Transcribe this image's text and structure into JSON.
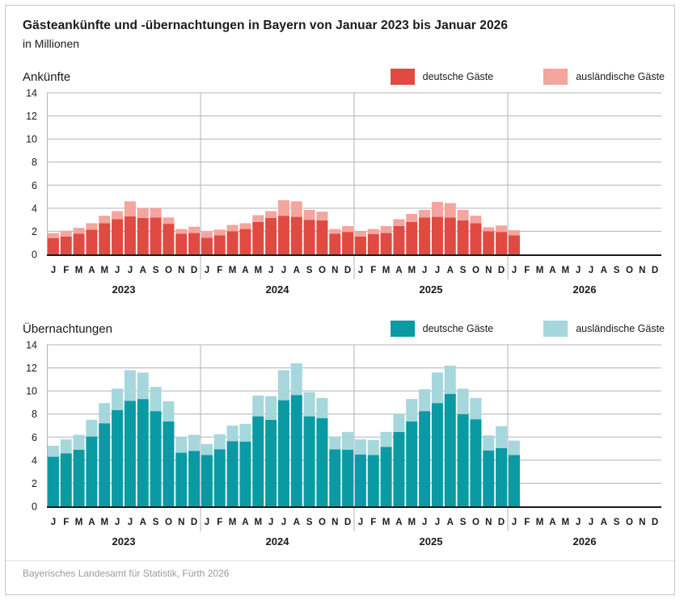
{
  "header": {
    "title": "Gästeankünfte und -übernachtungen in Bayern von Januar 2023 bis Januar 2026",
    "subtitle": "in Millionen"
  },
  "footer": {
    "source": "Bayerisches Landesamt für Statistik, Fürth 2026"
  },
  "colors": {
    "red": "#e04a42",
    "salmon": "#f4a59d",
    "teal": "#0a9aa3",
    "teal_light": "#a6d7dd",
    "grid": "#b3b3b3",
    "axis": "#1a1a1a",
    "text": "#1a1a1a"
  },
  "charts": [
    {
      "heading": "Ankünfte",
      "legend": [
        {
          "label": "deutsche Gäste"
        },
        {
          "label": "ausländische Gäste"
        }
      ]
    },
    {
      "heading": "Übernachtungen",
      "legend": [
        {
          "label": "deutsche Gäste"
        },
        {
          "label": "ausländische Gäste"
        }
      ]
    }
  ],
  "chart_data": [
    {
      "type": "bar",
      "stacked": true,
      "title": "Ankünfte",
      "years": [
        "2023",
        "2024",
        "2025",
        "2026"
      ],
      "month_letters": [
        "J",
        "F",
        "M",
        "A",
        "M",
        "J",
        "J",
        "A",
        "S",
        "O",
        "N",
        "D"
      ],
      "ylim": [
        0,
        14
      ],
      "ytick_step": 2,
      "grid": true,
      "legend_position": "top-right",
      "series": [
        {
          "name": "deutsche Gäste",
          "values": [
            1.4,
            1.55,
            1.8,
            2.15,
            2.7,
            3.05,
            3.3,
            3.15,
            3.2,
            2.65,
            1.8,
            1.85,
            1.45,
            1.65,
            2.0,
            2.2,
            2.8,
            3.15,
            3.35,
            3.25,
            3.0,
            2.95,
            1.8,
            1.95,
            1.55,
            1.75,
            1.85,
            2.45,
            2.8,
            3.2,
            3.25,
            3.2,
            2.95,
            2.7,
            2.0,
            1.95,
            1.65
          ]
        },
        {
          "name": "ausländische Gäste",
          "values": [
            0.45,
            0.5,
            0.5,
            0.55,
            0.65,
            0.7,
            1.3,
            0.85,
            0.8,
            0.55,
            0.4,
            0.55,
            0.5,
            0.5,
            0.55,
            0.5,
            0.6,
            0.6,
            1.35,
            1.35,
            0.85,
            0.75,
            0.4,
            0.5,
            0.45,
            0.45,
            0.6,
            0.6,
            0.7,
            0.65,
            1.3,
            1.25,
            0.9,
            0.65,
            0.35,
            0.55,
            0.45
          ]
        }
      ]
    },
    {
      "type": "bar",
      "stacked": true,
      "title": "Übernachtungen",
      "years": [
        "2023",
        "2024",
        "2025",
        "2026"
      ],
      "month_letters": [
        "J",
        "F",
        "M",
        "A",
        "M",
        "J",
        "J",
        "A",
        "S",
        "O",
        "N",
        "D"
      ],
      "ylim": [
        0,
        14
      ],
      "ytick_step": 2,
      "grid": true,
      "legend_position": "top-right",
      "series": [
        {
          "name": "deutsche Gäste",
          "values": [
            4.3,
            4.6,
            4.9,
            6.05,
            7.2,
            8.35,
            9.15,
            9.3,
            8.25,
            7.35,
            4.65,
            4.8,
            4.45,
            4.95,
            5.65,
            5.6,
            7.8,
            7.5,
            9.2,
            9.65,
            7.8,
            7.65,
            4.95,
            4.9,
            4.5,
            4.45,
            5.15,
            6.45,
            7.35,
            8.25,
            8.95,
            9.75,
            8.0,
            7.55,
            4.85,
            5.05,
            4.45
          ]
        },
        {
          "name": "ausländische Gäste",
          "values": [
            0.95,
            1.2,
            1.3,
            1.45,
            1.75,
            1.85,
            2.65,
            2.3,
            2.1,
            1.75,
            1.3,
            1.4,
            0.95,
            1.3,
            1.35,
            1.55,
            1.8,
            2.05,
            2.6,
            2.75,
            2.1,
            1.75,
            1.1,
            1.55,
            1.3,
            1.3,
            1.3,
            1.55,
            1.95,
            1.9,
            2.65,
            2.45,
            2.2,
            1.85,
            1.3,
            1.9,
            1.25
          ]
        }
      ]
    }
  ]
}
